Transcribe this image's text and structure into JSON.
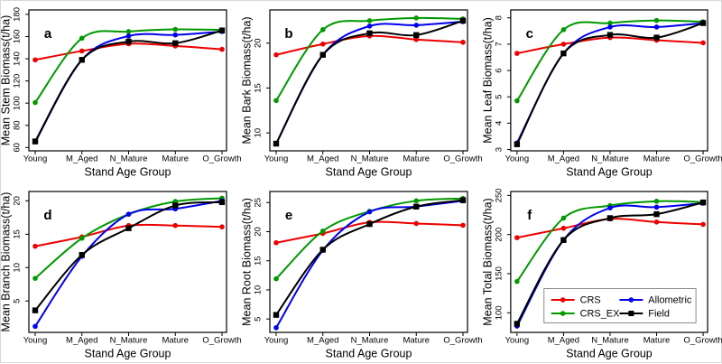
{
  "figure": {
    "xlabel": "Stand Age Group",
    "categories": [
      "Young",
      "M_Aged",
      "N_Mature",
      "Mature",
      "O_Growth"
    ],
    "colors": {
      "CRS": "#ee0000",
      "CRS_EX": "#009900",
      "Allometric": "#0000ee",
      "Field": "#000000"
    },
    "legend": {
      "items": [
        {
          "label": "CRS",
          "color": "#ee0000",
          "marker": "circle"
        },
        {
          "label": "CRS_EX",
          "color": "#009900",
          "marker": "circle"
        },
        {
          "label": "Allometric",
          "color": "#0000ee",
          "marker": "circle"
        },
        {
          "label": "Field",
          "color": "#000000",
          "marker": "square"
        }
      ]
    }
  },
  "chart_data": [
    {
      "type": "line",
      "panel_label": "a",
      "ylabel": "Mean Stem Biomass(t/ha)",
      "xlabel": "Stand Age Group",
      "categories": [
        "Young",
        "M_Aged",
        "N_Mature",
        "Mature",
        "O_Growth"
      ],
      "yticks": [
        60,
        80,
        100,
        120,
        140,
        160,
        180
      ],
      "ylim": [
        57,
        184
      ],
      "show_legend": false,
      "series": [
        {
          "name": "CRS",
          "color": "#ee0000",
          "marker": "circle",
          "values": [
            139,
            147,
            153.5,
            151.5,
            148.5
          ]
        },
        {
          "name": "CRS_EX",
          "color": "#009900",
          "marker": "circle",
          "values": [
            100.5,
            158.5,
            164.5,
            166.5,
            166
          ]
        },
        {
          "name": "Allometric",
          "color": "#0000ee",
          "marker": "circle",
          "values": [
            65,
            139,
            160.5,
            161.5,
            164.5
          ]
        },
        {
          "name": "Field",
          "color": "#000000",
          "marker": "square",
          "values": [
            65.5,
            139,
            155.5,
            154,
            165.5
          ]
        }
      ]
    },
    {
      "type": "line",
      "panel_label": "b",
      "ylabel": "Mean Bark Biomass(t/ha)",
      "xlabel": "Stand Age Group",
      "categories": [
        "Young",
        "M_Aged",
        "N_Mature",
        "Mature",
        "O_Growth"
      ],
      "yticks": [
        10,
        15,
        20
      ],
      "ylim": [
        8,
        23.7
      ],
      "show_legend": false,
      "series": [
        {
          "name": "CRS",
          "color": "#ee0000",
          "marker": "circle",
          "values": [
            18.7,
            19.9,
            20.8,
            20.4,
            20.1
          ]
        },
        {
          "name": "CRS_EX",
          "color": "#009900",
          "marker": "circle",
          "values": [
            13.6,
            21.5,
            22.5,
            22.8,
            22.7
          ]
        },
        {
          "name": "Allometric",
          "color": "#0000ee",
          "marker": "circle",
          "values": [
            8.8,
            18.7,
            21.9,
            22.0,
            22.4
          ]
        },
        {
          "name": "Field",
          "color": "#000000",
          "marker": "square",
          "values": [
            8.8,
            18.7,
            21.1,
            20.9,
            22.5
          ]
        }
      ]
    },
    {
      "type": "line",
      "panel_label": "c",
      "ylabel": "Mean Leaf Biomass(t/ha)",
      "xlabel": "Stand Age Group",
      "categories": [
        "Young",
        "M_Aged",
        "N_Mature",
        "Mature",
        "O_Growth"
      ],
      "yticks": [
        3,
        4,
        5,
        6,
        7,
        8
      ],
      "ylim": [
        2.95,
        8.3
      ],
      "show_legend": false,
      "series": [
        {
          "name": "CRS",
          "color": "#ee0000",
          "marker": "circle",
          "values": [
            6.65,
            7.0,
            7.25,
            7.15,
            7.05
          ]
        },
        {
          "name": "CRS_EX",
          "color": "#009900",
          "marker": "circle",
          "values": [
            4.85,
            7.55,
            7.8,
            7.9,
            7.85
          ]
        },
        {
          "name": "Allometric",
          "color": "#0000ee",
          "marker": "circle",
          "values": [
            3.25,
            6.65,
            7.65,
            7.65,
            7.8
          ]
        },
        {
          "name": "Field",
          "color": "#000000",
          "marker": "square",
          "values": [
            3.2,
            6.65,
            7.35,
            7.25,
            7.8
          ]
        }
      ]
    },
    {
      "type": "line",
      "panel_label": "d",
      "ylabel": "Mean Branch Biomass(t/ha)",
      "xlabel": "Stand Age Group",
      "categories": [
        "Young",
        "M_Aged",
        "N_Mature",
        "Mature",
        "O_Growth"
      ],
      "yticks": [
        5,
        10,
        15,
        20
      ],
      "ylim": [
        0.3,
        21.4
      ],
      "show_legend": false,
      "series": [
        {
          "name": "CRS",
          "color": "#ee0000",
          "marker": "circle",
          "values": [
            13.2,
            14.6,
            16.3,
            16.3,
            16.1
          ]
        },
        {
          "name": "CRS_EX",
          "color": "#009900",
          "marker": "circle",
          "values": [
            8.4,
            14.4,
            18.0,
            19.9,
            20.4
          ]
        },
        {
          "name": "Allometric",
          "color": "#0000ee",
          "marker": "circle",
          "values": [
            1.2,
            11.7,
            18.0,
            18.8,
            20.0
          ]
        },
        {
          "name": "Field",
          "color": "#000000",
          "marker": "square",
          "values": [
            3.6,
            11.9,
            15.9,
            19.3,
            19.8
          ]
        }
      ]
    },
    {
      "type": "line",
      "panel_label": "e",
      "ylabel": "Mean Root Biomass(t/ha)",
      "xlabel": "Stand Age Group",
      "categories": [
        "Young",
        "M_Aged",
        "N_Mature",
        "Mature",
        "O_Growth"
      ],
      "yticks": [
        5,
        10,
        15,
        20,
        25
      ],
      "ylim": [
        2.7,
        26.9
      ],
      "show_legend": false,
      "series": [
        {
          "name": "CRS",
          "color": "#ee0000",
          "marker": "circle",
          "values": [
            18.1,
            19.7,
            21.6,
            21.4,
            21.1
          ]
        },
        {
          "name": "CRS_EX",
          "color": "#009900",
          "marker": "circle",
          "values": [
            11.9,
            20.1,
            23.5,
            25.3,
            25.7
          ]
        },
        {
          "name": "Allometric",
          "color": "#0000ee",
          "marker": "circle",
          "values": [
            3.5,
            16.8,
            23.4,
            24.3,
            25.3
          ]
        },
        {
          "name": "Field",
          "color": "#000000",
          "marker": "square",
          "values": [
            5.7,
            16.9,
            21.3,
            24.3,
            25.4
          ]
        }
      ]
    },
    {
      "type": "line",
      "panel_label": "f",
      "ylabel": "Mean Total Biomass(t/ha)",
      "xlabel": "Stand Age Group",
      "categories": [
        "Young",
        "M_Aged",
        "N_Mature",
        "Mature",
        "O_Growth"
      ],
      "yticks": [
        100,
        150,
        200,
        250
      ],
      "ylim": [
        75,
        255
      ],
      "show_legend": true,
      "series": [
        {
          "name": "CRS",
          "color": "#ee0000",
          "marker": "circle",
          "values": [
            196,
            208,
            220,
            216,
            213
          ]
        },
        {
          "name": "CRS_EX",
          "color": "#009900",
          "marker": "circle",
          "values": [
            140,
            221,
            237,
            242.5,
            241.5
          ]
        },
        {
          "name": "Allometric",
          "color": "#0000ee",
          "marker": "circle",
          "values": [
            83,
            193,
            234,
            235,
            240
          ]
        },
        {
          "name": "Field",
          "color": "#000000",
          "marker": "square",
          "values": [
            86,
            193,
            221,
            226,
            241
          ]
        }
      ]
    }
  ]
}
